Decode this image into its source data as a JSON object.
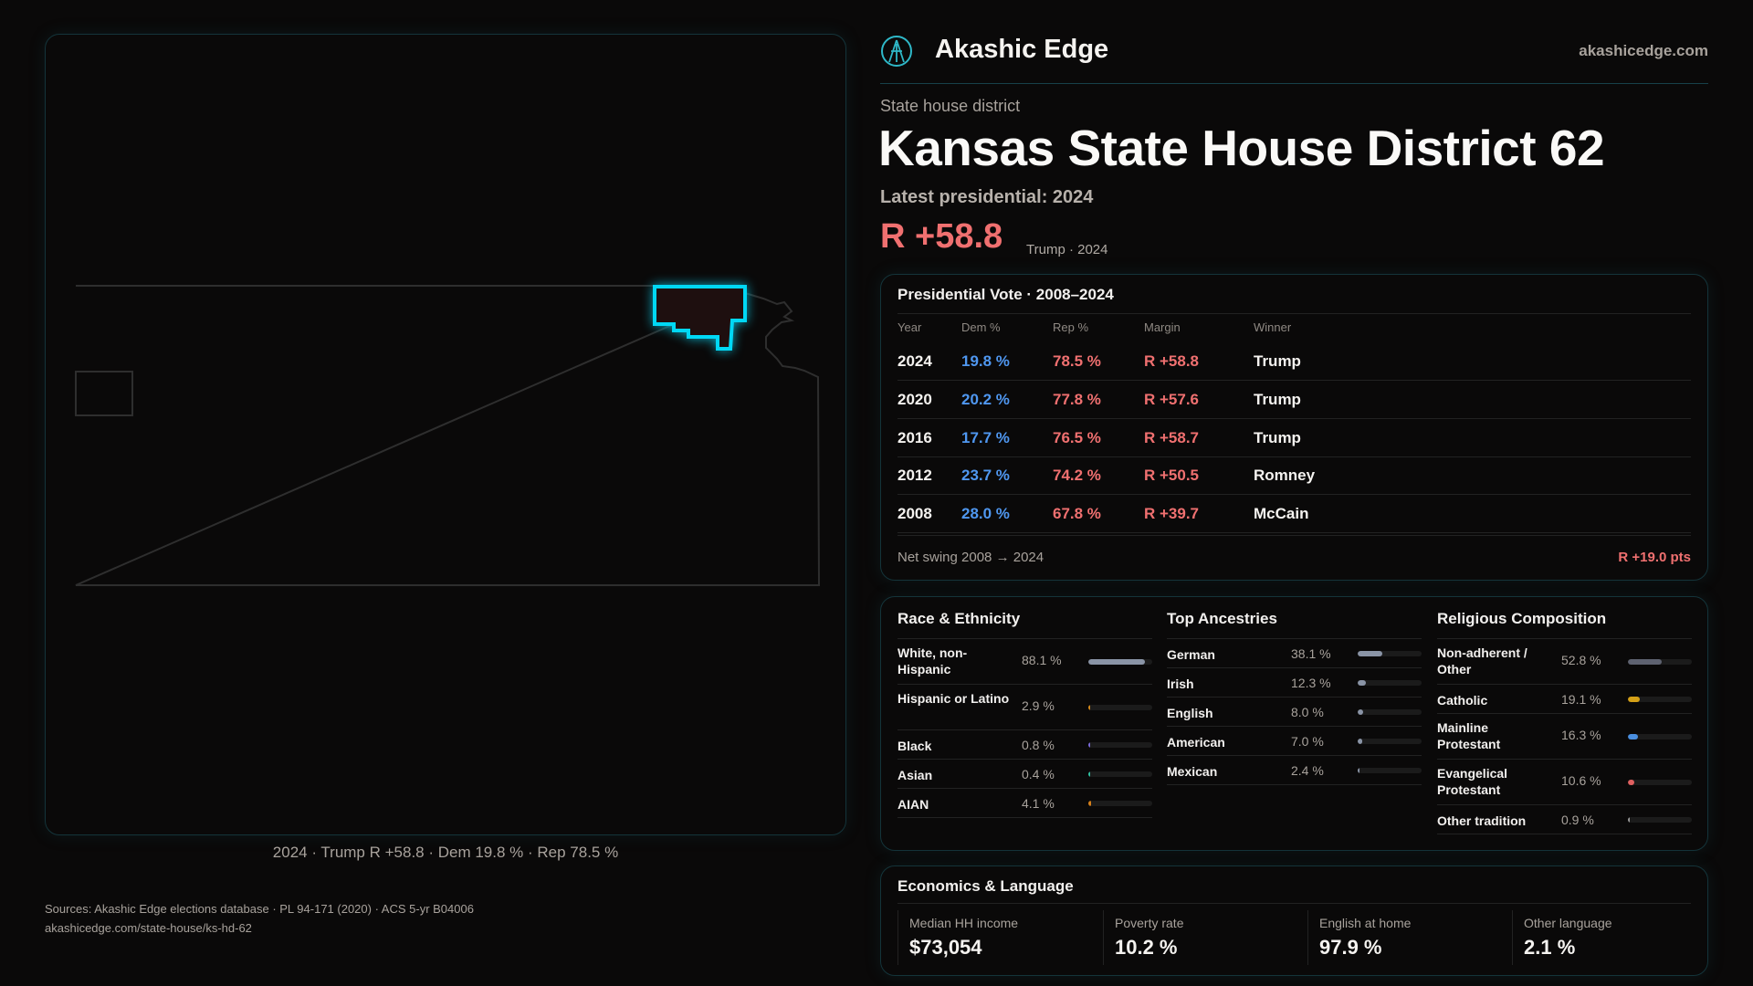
{
  "brand": {
    "name": "Akashic Edge",
    "url": "akashicedge.com"
  },
  "header": {
    "kicker": "State house district",
    "title": "Kansas State House District 62",
    "latest": "Latest presidential: 2024",
    "margin": "R +58.8",
    "margin_sub": "Trump · 2024"
  },
  "map": {
    "caption": "2024 · Trump R +58.8 · Dem 19.8 % · Rep 78.5 %"
  },
  "presidential": {
    "title": "Presidential Vote · 2008–2024",
    "headers": [
      "Year",
      "Dem %",
      "Rep %",
      "Margin",
      "Winner"
    ],
    "rows": [
      {
        "year": "2024",
        "dem": "19.8 %",
        "rep": "78.5 %",
        "margin": "R +58.8",
        "winner": "Trump"
      },
      {
        "year": "2020",
        "dem": "20.2 %",
        "rep": "77.8 %",
        "margin": "R +57.6",
        "winner": "Trump"
      },
      {
        "year": "2016",
        "dem": "17.7 %",
        "rep": "76.5 %",
        "margin": "R +58.7",
        "winner": "Trump"
      },
      {
        "year": "2012",
        "dem": "23.7 %",
        "rep": "74.2 %",
        "margin": "R +50.5",
        "winner": "Romney"
      },
      {
        "year": "2008",
        "dem": "28.0 %",
        "rep": "67.8 %",
        "margin": "R +39.7",
        "winner": "McCain"
      }
    ],
    "swing_label": "Net swing 2008 → 2024",
    "swing_value": "R +19.0 pts"
  },
  "demographics": [
    {
      "title": "Race & Ethnicity",
      "items": [
        {
          "label": "White, non-Hispanic",
          "value": "88.1 %",
          "pct": 88.1,
          "color": "#8a94a6"
        },
        {
          "label": "Hispanic or Latino",
          "value": "2.9 %",
          "pct": 2.9,
          "color": "#d68a1a"
        },
        {
          "label": "Black",
          "value": "0.8 %",
          "pct": 0.8,
          "color": "#7a6ad8"
        },
        {
          "label": "Asian",
          "value": "0.4 %",
          "pct": 0.4,
          "color": "#2fc0a0"
        },
        {
          "label": "AIAN",
          "value": "4.1 %",
          "pct": 4.1,
          "color": "#d6801a"
        }
      ]
    },
    {
      "title": "Top Ancestries",
      "items": [
        {
          "label": "German",
          "value": "38.1 %",
          "pct": 38.1,
          "color": "#8a94a6"
        },
        {
          "label": "Irish",
          "value": "12.3 %",
          "pct": 12.3,
          "color": "#8a94a6"
        },
        {
          "label": "English",
          "value": "8.0 %",
          "pct": 8.0,
          "color": "#8a94a6"
        },
        {
          "label": "American",
          "value": "7.0 %",
          "pct": 7.0,
          "color": "#8a94a6"
        },
        {
          "label": "Mexican",
          "value": "2.4 %",
          "pct": 2.4,
          "color": "#8a94a6"
        }
      ]
    },
    {
      "title": "Religious Composition",
      "items": [
        {
          "label": "Non-adherent / Other",
          "value": "52.8 %",
          "pct": 52.8,
          "color": "#5e6270"
        },
        {
          "label": "Catholic",
          "value": "19.1 %",
          "pct": 19.1,
          "color": "#d4a017"
        },
        {
          "label": "Mainline Protestant",
          "value": "16.3 %",
          "pct": 16.3,
          "color": "#4a8fe0"
        },
        {
          "label": "Evangelical Protestant",
          "value": "10.6 %",
          "pct": 10.6,
          "color": "#e06060"
        },
        {
          "label": "Other tradition",
          "value": "0.9 %",
          "pct": 0.9,
          "color": "#999999"
        }
      ]
    }
  ],
  "economics": {
    "title": "Economics & Language",
    "items": [
      {
        "label": "Median HH income",
        "value": "$73,054"
      },
      {
        "label": "Poverty rate",
        "value": "10.2 %"
      },
      {
        "label": "English at home",
        "value": "97.9 %"
      },
      {
        "label": "Other language",
        "value": "2.1 %"
      }
    ]
  },
  "sources": {
    "line1": "Sources: Akashic Edge elections database · PL 94-171 (2020) · ACS 5-yr B04006",
    "line2": "akashicedge.com/state-house/ks-hd-62"
  }
}
